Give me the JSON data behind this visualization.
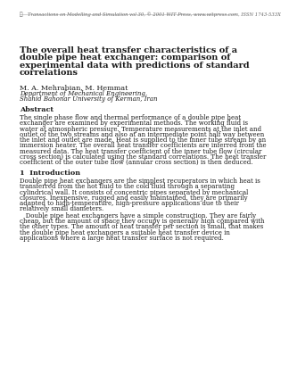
{
  "header_text": "Transactions on Modelling and Simulation vol 30, © 2001 WIT Press, www.witpress.com, ISSN 1743-533X",
  "title_line1": "The overall heat transfer characteristics of a",
  "title_line2": "double pipe heat exchanger: comparison of",
  "title_line3": "experimental data with predictions of standard",
  "title_line4": "correlations",
  "authors": "M. A. Mehrabian, M. Hemmat",
  "affiliation1": "Department of Mechanical Engineering,",
  "affiliation2": "Shahid Bahonar University of Kerman, Iran",
  "abstract_title": "Abstract",
  "abstract_lines": [
    "The single phase flow and thermal performance of a double pipe heat",
    "exchanger are examined by experimental methods. The working fluid is",
    "water at atmospheric pressure. Temperature measurements at the inlet and",
    "outlet of the two streams and also at an intermediate point half way between",
    "the inlet and outlet are made. Heat is supplied to the inner tube stream by an",
    "immersion heater. The overall heat transfer coefficients are inferred from the",
    "measured data. The heat transfer coefficient of the inner tube flow (circular",
    "cross section) is calculated using the standard correlations. The heat transfer",
    "coefficient of the outer tube flow (annular cross section) is then deduced."
  ],
  "intro_title": "1  Introduction",
  "intro_lines1": [
    "Double pipe heat exchangers are the simplest recuperators in which heat is",
    "transferred from the hot fluid to the cold fluid through a separating",
    "cylindrical wall. It consists of concentric pipes separated by mechanical",
    "closures. Inexpensive, rugged and easily maintained, they are primarily",
    "adapted to high-temperature, high-pressure applications due to their",
    "relatively small diameters."
  ],
  "intro_lines2": [
    "   Double pipe heat exchangers have a simple construction. They are fairly",
    "cheap, but the amount of space they occupy is generally high compared with",
    "the other types. The amount of heat transfer per section is small, that makes",
    "the double pipe heat exchangers a suitable heat transfer device in",
    "applications where a large heat transfer surface is not required."
  ],
  "bg_color": "#ffffff",
  "text_color": "#1a1a1a",
  "header_color": "#666666",
  "title_fontsize": 7.0,
  "authors_fontsize": 5.8,
  "body_fontsize": 5.0,
  "header_fontsize": 3.8,
  "section_fontsize": 5.8
}
